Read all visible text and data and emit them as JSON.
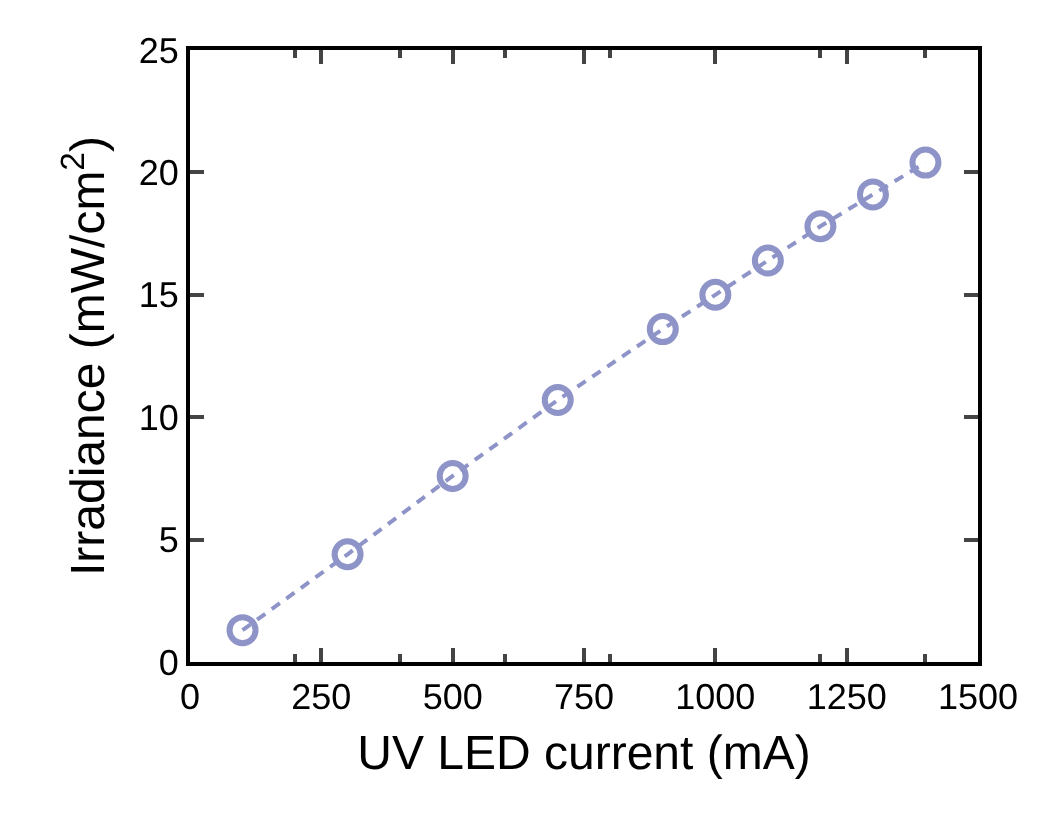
{
  "chart_data": {
    "type": "line",
    "xlabel": "UV LED current (mA)",
    "ylabel": "Irradiance (mW/cm$^{2}$)",
    "x": [
      100,
      300,
      500,
      700,
      900,
      1000,
      1100,
      1200,
      1300,
      1400
    ],
    "series": [
      {
        "color": "#8e94c8",
        "values": [
          1.3,
          4.4,
          7.6,
          10.7,
          13.6,
          15.0,
          16.4,
          17.8,
          19.1,
          20.4
        ]
      }
    ],
    "xlim": [
      0,
      1500
    ],
    "xticks": [
      0,
      250,
      500,
      750,
      1000,
      1250,
      1500
    ],
    "ylim": [
      0,
      25
    ],
    "yticks": [
      0,
      5,
      10,
      15,
      20,
      25
    ],
    "marker": "circle",
    "line_style": "dashed",
    "grid": false
  }
}
